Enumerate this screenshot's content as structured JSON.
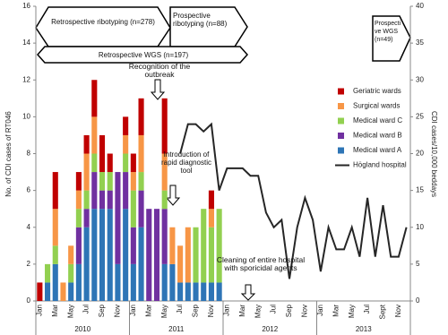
{
  "chart_data": {
    "type": "bar-line",
    "y_label": "No. of CDI cases of RT046",
    "y2_label": "CDI cases/10,000 beddays",
    "categories": [
      "Jan",
      null,
      "Mar",
      null,
      "May",
      null,
      "Jul",
      null,
      "Sep",
      null,
      "Nov",
      null,
      "Jan",
      null,
      "Mar",
      null,
      "May",
      null,
      "Jul",
      null,
      "Sep",
      null,
      "Nov",
      null,
      "Jan",
      null,
      "Mar",
      null,
      "May",
      null,
      "Jul",
      null,
      "Sep",
      null,
      "Nov",
      null,
      "Jan",
      null,
      "Mar",
      null,
      "May",
      null,
      "Jul",
      null,
      "Sept",
      null,
      "Nov",
      null
    ],
    "category_groups": [
      "2010",
      "2011",
      "2012",
      "2013"
    ],
    "series": [
      {
        "name": "Medical ward A",
        "color": "#2e75b6",
        "values": [
          0,
          1,
          2,
          0,
          1,
          2,
          4,
          5,
          5,
          5,
          2,
          5,
          2,
          4,
          0,
          0,
          2,
          2,
          1,
          1,
          1,
          1,
          1,
          1,
          null,
          null,
          null,
          null,
          null,
          null,
          null,
          null,
          null,
          null,
          null,
          null,
          null,
          null,
          null,
          null,
          null,
          null,
          null,
          null,
          null,
          null,
          null,
          null
        ]
      },
      {
        "name": "Medical ward B",
        "color": "#7030a0",
        "values": [
          0,
          0,
          0,
          0,
          0,
          2,
          1,
          2,
          1,
          1,
          5,
          2,
          2,
          2,
          5,
          5,
          3,
          0,
          0,
          0,
          0,
          0,
          0,
          0,
          null,
          null,
          null,
          null,
          null,
          null,
          null,
          null,
          null,
          null,
          null,
          null,
          null,
          null,
          null,
          null,
          null,
          null,
          null,
          null,
          null,
          null,
          null,
          null
        ]
      },
      {
        "name": "Medical ward C",
        "color": "#92d050",
        "values": [
          0,
          1,
          1,
          0,
          1,
          1,
          1,
          1,
          1,
          1,
          0,
          1,
          2,
          1,
          0,
          0,
          1,
          0,
          0,
          0,
          3,
          4,
          3,
          4,
          null,
          null,
          null,
          null,
          null,
          null,
          null,
          null,
          null,
          null,
          null,
          null,
          null,
          null,
          null,
          null,
          null,
          null,
          null,
          null,
          null,
          null,
          null,
          null
        ]
      },
      {
        "name": "Surgical wards",
        "color": "#f79646",
        "values": [
          0,
          0,
          2,
          1,
          1,
          1,
          2,
          2,
          0,
          0,
          0,
          1,
          1,
          2,
          0,
          0,
          2,
          2,
          2,
          3,
          0,
          0,
          1,
          0,
          null,
          null,
          null,
          null,
          null,
          null,
          null,
          null,
          null,
          null,
          null,
          null,
          null,
          null,
          null,
          null,
          null,
          null,
          null,
          null,
          null,
          null,
          null,
          null
        ]
      },
      {
        "name": "Geriatric wards",
        "color": "#c00000",
        "values": [
          1,
          0,
          2,
          0,
          0,
          1,
          1,
          2,
          2,
          1,
          0,
          1,
          1,
          2,
          0,
          0,
          3,
          0,
          0,
          0,
          0,
          0,
          1,
          0,
          null,
          null,
          null,
          null,
          null,
          null,
          null,
          null,
          null,
          null,
          null,
          null,
          null,
          null,
          null,
          null,
          null,
          null,
          null,
          null,
          null,
          null,
          null,
          null
        ]
      },
      {
        "name": "Högland hospital",
        "color": "#262626",
        "axis": "y2",
        "values": [
          null,
          null,
          null,
          null,
          null,
          null,
          null,
          null,
          null,
          null,
          null,
          null,
          null,
          null,
          null,
          null,
          null,
          null,
          20,
          24,
          24,
          23,
          24,
          15,
          18,
          18,
          18,
          17,
          17,
          12,
          10,
          11,
          3,
          10,
          14,
          11,
          4,
          10,
          7,
          7,
          10,
          6,
          14,
          6,
          13,
          6,
          6,
          10
        ]
      }
    ],
    "ylim": [
      0,
      16
    ],
    "yticks": [
      0,
      2,
      4,
      6,
      8,
      10,
      12,
      14,
      16
    ],
    "y2lim": [
      0,
      40
    ],
    "y2ticks": [
      0,
      5,
      10,
      15,
      20,
      25,
      30,
      35,
      40
    ],
    "annotations": [
      "Retrospective ribotyping (n=278)",
      "Prospective ribotyping (n=88)",
      "Retrospective WGS (n=197)",
      "Prospective WGS (n=49)",
      "Recognition of the outbreak",
      "Introduction of rapid diagnostic tool",
      "Cleaning of entire hospital with sporicidal agents"
    ]
  }
}
